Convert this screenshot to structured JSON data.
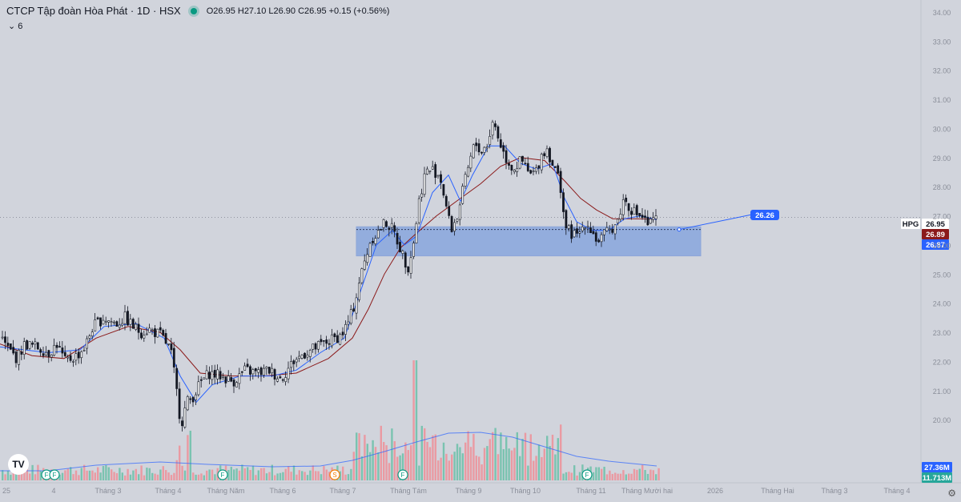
{
  "header": {
    "title": "CTCP Tập đoàn Hòa Phát · 1D · HSX",
    "ohlc": "O26.95  H27.10  L26.90  C26.95  +0.15 (+0.56%)",
    "indicator_count": "6"
  },
  "badges": {
    "symbol": "HPG",
    "last_price": "26.95",
    "ma_red": "26.89",
    "ma_blue": "26.87",
    "target": "26.26",
    "vol_ma": "27.36M",
    "volume": "11.713M"
  },
  "colors": {
    "background": "#d1d4dc",
    "up": "#089981",
    "down": "#131722",
    "ma_fast": "#2962ff",
    "ma_slow": "#8b1a1a",
    "zone": "#4a7ee0"
  },
  "x_axis_labels": [
    "25",
    "4",
    "Tháng 3",
    "Tháng 4",
    "Tháng Năm",
    "Tháng 6",
    "Tháng 7",
    "Tháng Tám",
    "Tháng 9",
    "Tháng 10",
    "Tháng 11",
    "Tháng Mười hai",
    "2026",
    "Tháng Hai",
    "Tháng 3",
    "Tháng 4"
  ],
  "chart_data": {
    "type": "candlestick",
    "symbol": "HPG",
    "timeframe": "1D",
    "ylim": [
      19.4,
      34.0
    ],
    "y_ticks": [
      "34.00",
      "33.00",
      "32.00",
      "31.00",
      "30.00",
      "29.00",
      "28.00",
      "27.00",
      "26.00",
      "25.00",
      "24.00",
      "23.00",
      "22.00",
      "21.00",
      "20.00"
    ],
    "price_path": [
      [
        0,
        22.8
      ],
      [
        10,
        22.4
      ],
      [
        20,
        22.1
      ],
      [
        30,
        22.6
      ],
      [
        45,
        22.5
      ],
      [
        60,
        22.3
      ],
      [
        70,
        22.6
      ],
      [
        80,
        22.0
      ],
      [
        95,
        22.2
      ],
      [
        105,
        22.5
      ],
      [
        115,
        23.2
      ],
      [
        120,
        23.3
      ],
      [
        128,
        23.5
      ],
      [
        135,
        23.4
      ],
      [
        145,
        23.3
      ],
      [
        155,
        23.5
      ],
      [
        165,
        23.2
      ],
      [
        175,
        23.0
      ],
      [
        185,
        23.1
      ],
      [
        200,
        22.9
      ],
      [
        212,
        22.4
      ],
      [
        218,
        21.3
      ],
      [
        225,
        19.8
      ],
      [
        232,
        20.6
      ],
      [
        240,
        20.8
      ],
      [
        250,
        21.3
      ],
      [
        260,
        21.6
      ],
      [
        275,
        21.5
      ],
      [
        290,
        21.3
      ],
      [
        305,
        21.7
      ],
      [
        320,
        21.6
      ],
      [
        335,
        21.7
      ],
      [
        350,
        21.4
      ],
      [
        365,
        22.0
      ],
      [
        380,
        22.3
      ],
      [
        395,
        22.5
      ],
      [
        410,
        22.7
      ],
      [
        425,
        22.9
      ],
      [
        435,
        23.4
      ],
      [
        442,
        24.0
      ],
      [
        448,
        24.8
      ],
      [
        455,
        25.5
      ],
      [
        462,
        26.2
      ],
      [
        470,
        26.4
      ],
      [
        480,
        26.8
      ],
      [
        490,
        26.5
      ],
      [
        500,
        25.8
      ],
      [
        508,
        25.2
      ],
      [
        515,
        26.0
      ],
      [
        522,
        27.5
      ],
      [
        530,
        28.5
      ],
      [
        538,
        28.6
      ],
      [
        548,
        28.4
      ],
      [
        555,
        27.5
      ],
      [
        562,
        26.5
      ],
      [
        570,
        27.0
      ],
      [
        578,
        28.0
      ],
      [
        585,
        28.8
      ],
      [
        592,
        29.5
      ],
      [
        600,
        29.2
      ],
      [
        608,
        29.5
      ],
      [
        615,
        30.3
      ],
      [
        622,
        29.6
      ],
      [
        630,
        29.0
      ],
      [
        640,
        28.6
      ],
      [
        650,
        28.9
      ],
      [
        660,
        28.4
      ],
      [
        668,
        28.5
      ],
      [
        675,
        29.1
      ],
      [
        682,
        29.3
      ],
      [
        690,
        28.7
      ],
      [
        698,
        28.2
      ],
      [
        705,
        26.6
      ],
      [
        712,
        26.4
      ],
      [
        720,
        26.3
      ],
      [
        730,
        26.8
      ],
      [
        738,
        26.5
      ],
      [
        745,
        26.1
      ],
      [
        752,
        26.3
      ],
      [
        760,
        26.5
      ],
      [
        770,
        26.8
      ],
      [
        778,
        27.6
      ],
      [
        785,
        27.3
      ],
      [
        792,
        27.1
      ],
      [
        800,
        27.0
      ],
      [
        808,
        26.7
      ],
      [
        815,
        26.8
      ],
      [
        820,
        26.95
      ]
    ],
    "ma_fast_path": [
      [
        0,
        22.5
      ],
      [
        60,
        22.3
      ],
      [
        100,
        22.4
      ],
      [
        130,
        23.2
      ],
      [
        170,
        23.3
      ],
      [
        205,
        22.8
      ],
      [
        225,
        21.5
      ],
      [
        245,
        20.6
      ],
      [
        265,
        21.2
      ],
      [
        300,
        21.5
      ],
      [
        340,
        21.5
      ],
      [
        370,
        21.7
      ],
      [
        400,
        22.3
      ],
      [
        430,
        22.8
      ],
      [
        450,
        24.4
      ],
      [
        470,
        26.0
      ],
      [
        490,
        26.5
      ],
      [
        505,
        26.0
      ],
      [
        520,
        26.3
      ],
      [
        540,
        27.8
      ],
      [
        560,
        28.4
      ],
      [
        575,
        27.5
      ],
      [
        590,
        28.4
      ],
      [
        610,
        29.4
      ],
      [
        630,
        29.4
      ],
      [
        650,
        28.8
      ],
      [
        670,
        28.6
      ],
      [
        690,
        28.8
      ],
      [
        705,
        27.6
      ],
      [
        720,
        26.8
      ],
      [
        740,
        26.5
      ],
      [
        760,
        26.5
      ],
      [
        780,
        26.9
      ],
      [
        800,
        27.0
      ],
      [
        820,
        26.87
      ]
    ],
    "ma_slow_path": [
      [
        0,
        22.6
      ],
      [
        40,
        22.2
      ],
      [
        80,
        22.1
      ],
      [
        120,
        22.8
      ],
      [
        160,
        23.2
      ],
      [
        200,
        23.0
      ],
      [
        225,
        22.4
      ],
      [
        250,
        21.6
      ],
      [
        290,
        21.5
      ],
      [
        330,
        21.5
      ],
      [
        370,
        21.6
      ],
      [
        410,
        22.1
      ],
      [
        440,
        22.8
      ],
      [
        460,
        23.8
      ],
      [
        480,
        25.0
      ],
      [
        500,
        25.9
      ],
      [
        520,
        26.4
      ],
      [
        545,
        27.0
      ],
      [
        570,
        27.5
      ],
      [
        600,
        28.1
      ],
      [
        625,
        28.7
      ],
      [
        650,
        29.0
      ],
      [
        680,
        28.9
      ],
      [
        705,
        28.2
      ],
      [
        725,
        27.6
      ],
      [
        745,
        27.2
      ],
      [
        765,
        26.9
      ],
      [
        790,
        26.9
      ],
      [
        820,
        26.89
      ]
    ],
    "volume_ma_path": [
      [
        0,
        588
      ],
      [
        60,
        588
      ],
      [
        120,
        581
      ],
      [
        200,
        577
      ],
      [
        260,
        580
      ],
      [
        340,
        583
      ],
      [
        400,
        582
      ],
      [
        440,
        575
      ],
      [
        480,
        564
      ],
      [
        520,
        552
      ],
      [
        560,
        541
      ],
      [
        600,
        540
      ],
      [
        640,
        546
      ],
      [
        680,
        558
      ],
      [
        720,
        570
      ],
      [
        760,
        576
      ],
      [
        800,
        580
      ],
      [
        820,
        582
      ]
    ],
    "volume_bars_note": "Volume shown as bars along the bottom (max spike ~ Tháng Tám)",
    "support_zone": {
      "from": 25.9,
      "to": 26.35
    },
    "target_line": {
      "from": 26.26,
      "to": 26.9
    },
    "events": [
      "F",
      "F",
      "F",
      "S",
      "F",
      "F"
    ]
  }
}
